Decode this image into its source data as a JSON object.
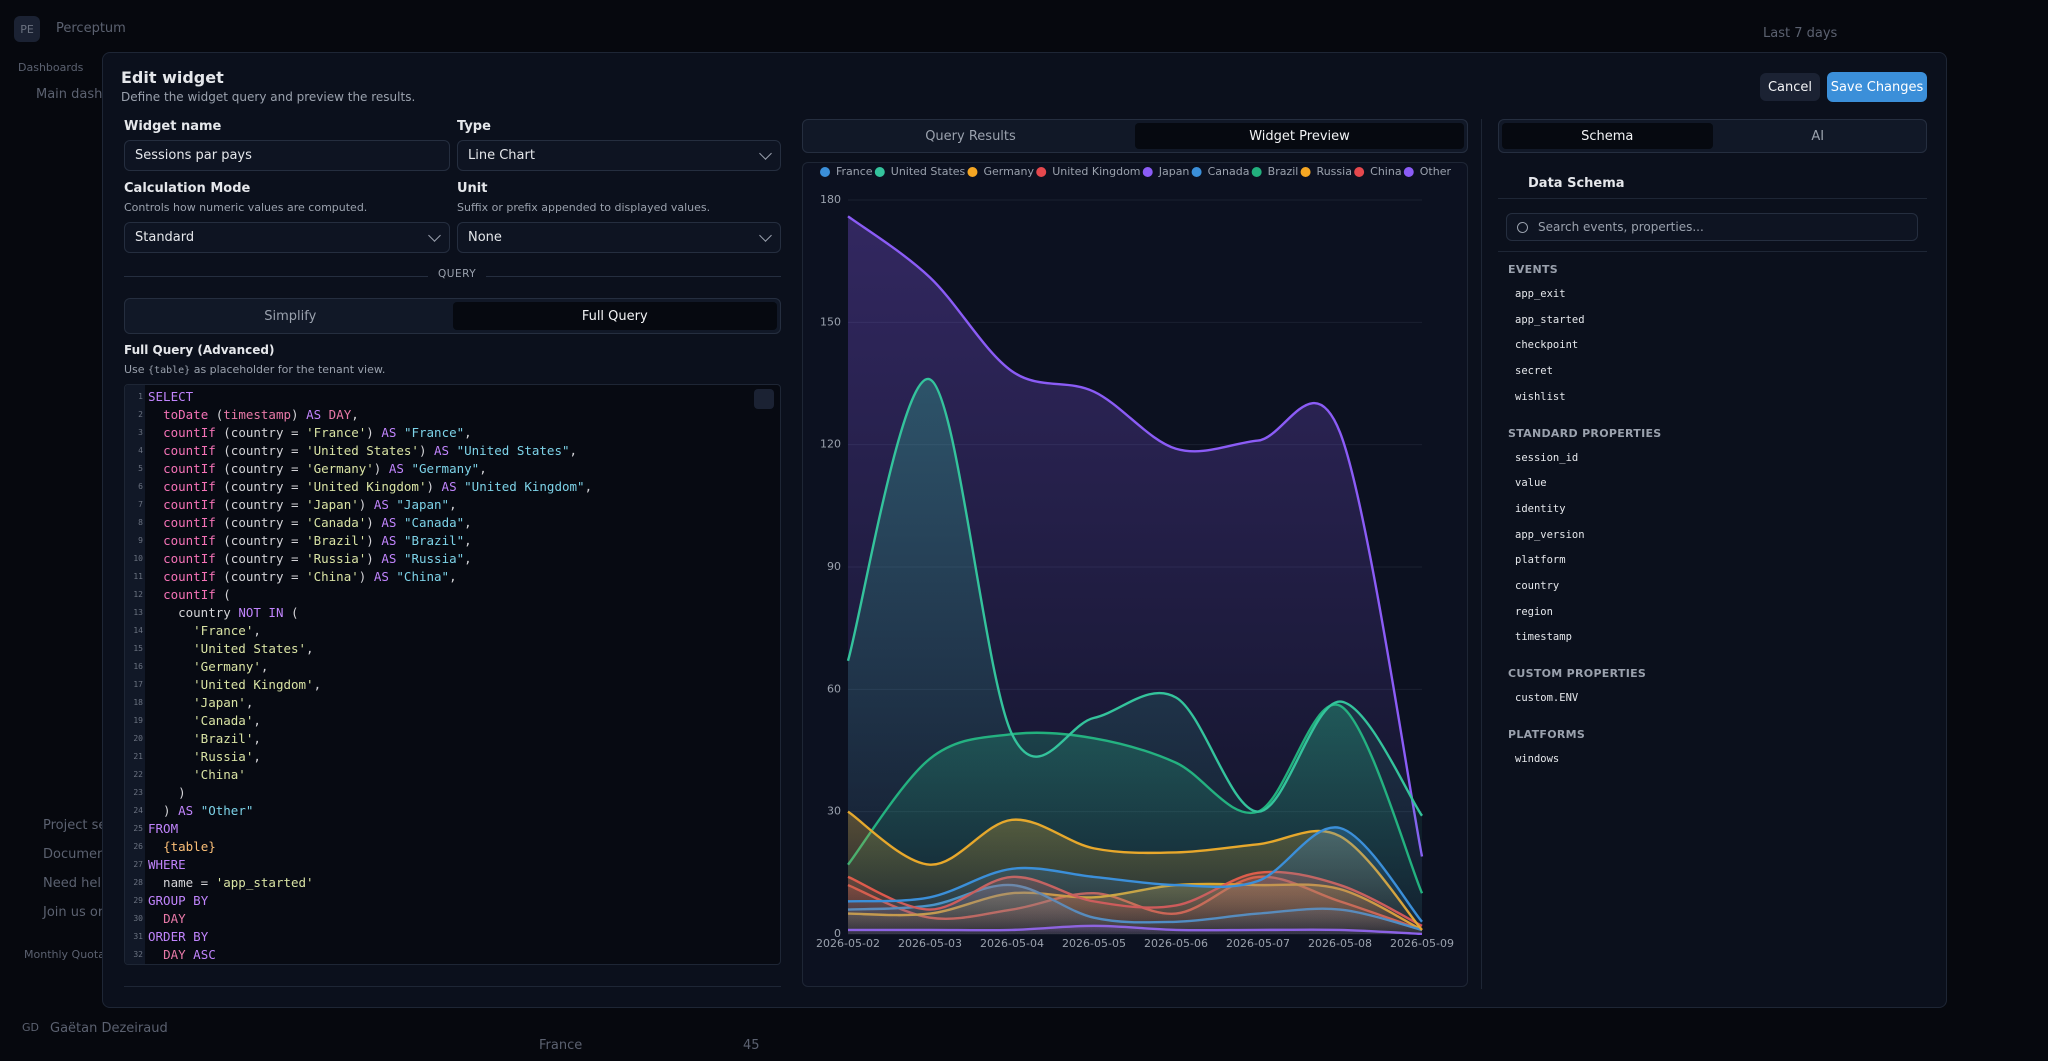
{
  "app": {
    "avatar": "PE",
    "name": "Perceptum",
    "section": "Dashboards",
    "current": "Main dashboard",
    "range": "Last 7 days",
    "footer_links": [
      "Project settings",
      "Documentation",
      "Need help?",
      "Join us on Discord"
    ],
    "quota": "Monthly Quota",
    "user_initials": "GD",
    "user": "Gaëtan Dezeiraud",
    "behind_row": [
      "France",
      "45"
    ]
  },
  "modal": {
    "title": "Edit widget",
    "subtitle": "Define the widget query and preview the results.",
    "cancel": "Cancel",
    "save": "Save Changes"
  },
  "form": {
    "widget_name_label": "Widget name",
    "widget_name": "Sessions par pays",
    "type_label": "Type",
    "type": "Line Chart",
    "calc_label": "Calculation Mode",
    "calc_help": "Controls how numeric values are computed.",
    "calc": "Standard",
    "unit_label": "Unit",
    "unit_help": "Suffix or prefix appended to displayed values.",
    "unit": "None",
    "divider": "QUERY",
    "mode_tabs": [
      "Simplify",
      "Full Query"
    ],
    "query_label": "Full Query (Advanced)",
    "query_help": [
      "Use ",
      "{table}",
      " as placeholder for the tenant view."
    ]
  },
  "code": {
    "line_numbers": [
      1,
      2,
      3,
      4,
      5,
      6,
      7,
      8,
      9,
      10,
      11,
      12,
      13,
      14,
      15,
      16,
      17,
      18,
      19,
      20,
      21,
      22,
      23,
      24,
      25,
      26,
      27,
      28,
      29,
      30,
      31,
      32
    ],
    "lines": [
      "SELECT",
      "  toDate (timestamp) AS DAY,",
      "  countIf (country = 'France') AS \"France\",",
      "  countIf (country = 'United States') AS \"United States\",",
      "  countIf (country = 'Germany') AS \"Germany\",",
      "  countIf (country = 'United Kingdom') AS \"United Kingdom\",",
      "  countIf (country = 'Japan') AS \"Japan\",",
      "  countIf (country = 'Canada') AS \"Canada\",",
      "  countIf (country = 'Brazil') AS \"Brazil\",",
      "  countIf (country = 'Russia') AS \"Russia\",",
      "  countIf (country = 'China') AS \"China\",",
      "  countIf (",
      "    country NOT IN (",
      "      'France',",
      "      'United States',",
      "      'Germany',",
      "      'United Kingdom',",
      "      'Japan',",
      "      'Canada',",
      "      'Brazil',",
      "      'Russia',",
      "      'China'",
      "    )",
      "  ) AS \"Other\"",
      "FROM",
      "  {table}",
      "WHERE",
      "  name = 'app_started'",
      "GROUP BY",
      "  DAY",
      "ORDER BY",
      "  DAY ASC"
    ]
  },
  "preview_tabs": [
    "Query Results",
    "Widget Preview"
  ],
  "chart_data": {
    "type": "line",
    "area": true,
    "grid": true,
    "categories": [
      "2026-05-02",
      "2026-05-03",
      "2026-05-04",
      "2026-05-05",
      "2026-05-06",
      "2026-05-07",
      "2026-05-08",
      "2026-05-09"
    ],
    "ylim": [
      0,
      180
    ],
    "yticks": [
      0,
      30,
      60,
      90,
      120,
      150,
      180
    ],
    "series": [
      {
        "name": "France",
        "color": "#3b8fd9",
        "values": [
          8,
          9,
          16,
          14,
          12,
          13,
          26,
          3
        ]
      },
      {
        "name": "United States",
        "color": "#34c39c",
        "values": [
          67,
          136,
          49,
          53,
          58,
          30,
          57,
          29
        ]
      },
      {
        "name": "Germany",
        "color": "#f5a623",
        "values": [
          30,
          17,
          28,
          21,
          20,
          22,
          24,
          1
        ]
      },
      {
        "name": "United Kingdom",
        "color": "#e5484d",
        "values": [
          14,
          6,
          14,
          8,
          7,
          15,
          12,
          2
        ]
      },
      {
        "name": "Japan",
        "color": "#8b5cf6",
        "values": [
          1,
          1,
          1,
          2,
          1,
          1,
          1,
          0
        ]
      },
      {
        "name": "Canada",
        "color": "#3b8fd9",
        "values": [
          6,
          7,
          12,
          4,
          3,
          5,
          6,
          1
        ]
      },
      {
        "name": "Brazil",
        "color": "#22b07d",
        "values": [
          17,
          43,
          49,
          48,
          42,
          30,
          56,
          10
        ]
      },
      {
        "name": "Russia",
        "color": "#f5a623",
        "values": [
          5,
          5,
          10,
          9,
          12,
          12,
          11,
          1
        ]
      },
      {
        "name": "China",
        "color": "#e5484d",
        "values": [
          12,
          4,
          6,
          10,
          5,
          14,
          8,
          1
        ]
      },
      {
        "name": "Other",
        "color": "#8b5cf6",
        "values": [
          176,
          161,
          138,
          133,
          119,
          121,
          123,
          19
        ]
      }
    ]
  },
  "schema": {
    "tabs": [
      "Schema",
      "AI"
    ],
    "title": "Data Schema",
    "search_placeholder": "Search events, properties...",
    "sections": [
      {
        "title": "EVENTS",
        "items": [
          "app_exit",
          "app_started",
          "checkpoint",
          "secret",
          "wishlist"
        ]
      },
      {
        "title": "STANDARD PROPERTIES",
        "items": [
          "session_id",
          "value",
          "identity",
          "app_version",
          "platform",
          "country",
          "region",
          "timestamp"
        ]
      },
      {
        "title": "CUSTOM PROPERTIES",
        "items": [
          "custom.ENV"
        ]
      },
      {
        "title": "PLATFORMS",
        "items": [
          "windows"
        ]
      }
    ]
  }
}
